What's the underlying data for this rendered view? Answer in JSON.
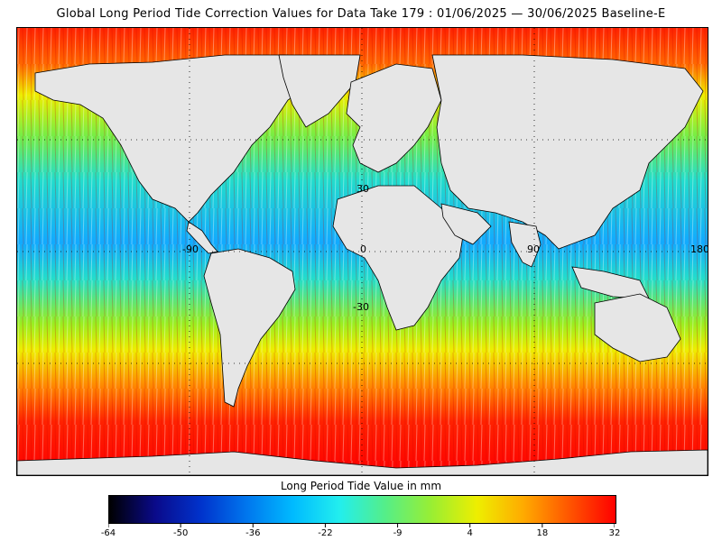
{
  "title": "Global Long Period Tide Correction Values for Data Take 179 : 01/06/2025 — 30/06/2025 Baseline-E",
  "map": {
    "type": "global-ocean-colour-map",
    "projection": "equirectangular",
    "lon_range": [
      -180,
      180
    ],
    "lat_range": [
      -90,
      90
    ],
    "grid_lines": "dotted, every 30 degrees",
    "land_color": "#e6e6e6",
    "grid_labels": {
      "lat_30": "30",
      "lat_minus30": "-30",
      "lon_minus90": "-90",
      "lon_0": "0",
      "lon_90": "90",
      "lon_180": "180"
    }
  },
  "colorbar": {
    "title": "Long Period Tide Value in mm",
    "ticks": [
      "-64",
      "-50",
      "-36",
      "-22",
      "-9",
      "4",
      "18",
      "32"
    ],
    "colors": [
      "#000000",
      "#0a0a8a",
      "#0033cc",
      "#0077ee",
      "#00bbff",
      "#22eeee",
      "#55ee88",
      "#99ee33",
      "#eeee00",
      "#ffaa00",
      "#ff5500",
      "#ff0000"
    ]
  }
}
